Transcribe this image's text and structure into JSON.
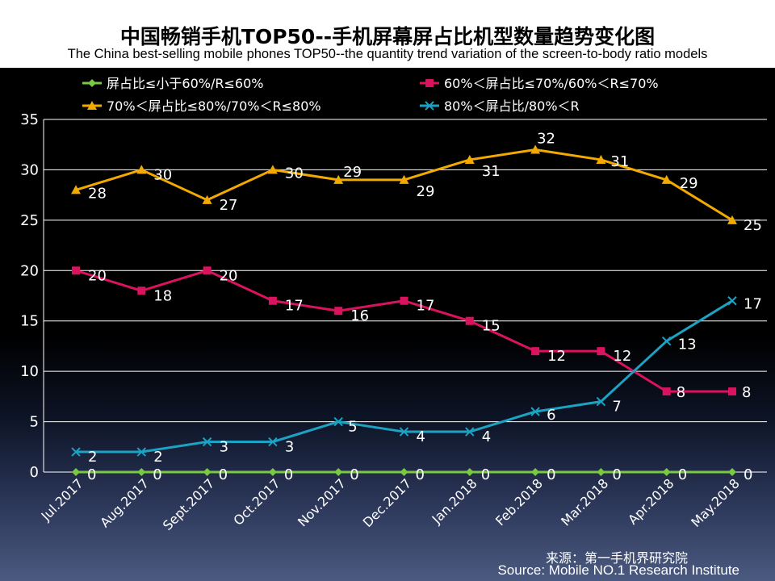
{
  "title": "中国畅销手机TOP50--手机屏幕屏占比机型数量趋势变化图",
  "subtitle": "The China best-selling mobile phones TOP50--the quantity trend variation of the screen-to-body ratio models",
  "source_cn": "来源：第一手机界研究院",
  "source_en": "Source: Mobile NO.1 Research Institute",
  "chart_data": {
    "type": "line",
    "title": "中国畅销手机TOP50--手机屏幕屏占比机型数量趋势变化图",
    "subtitle": "The China best-selling mobile phones TOP50--the quantity trend variation of the screen-to-body ratio models",
    "categories": [
      "Jul.2017",
      "Aug.2017",
      "Sept.2017",
      "Oct.2017",
      "Nov.2017",
      "Dec.2017",
      "Jan.2018",
      "Feb.2018",
      "Mar.2018",
      "Apr.2018",
      "May.2018"
    ],
    "ylim": [
      0,
      35
    ],
    "yticks": [
      0,
      5,
      10,
      15,
      20,
      25,
      30,
      35
    ],
    "ytick_labels": [
      "0",
      "5",
      "10",
      "15",
      "20",
      "25",
      "30",
      "35"
    ],
    "grid": true,
    "legend_position": "top",
    "series": [
      {
        "name": "屏占比≤小于60%/R≤60%",
        "color": "#7ac943",
        "marker": "diamond",
        "values": [
          0,
          0,
          0,
          0,
          0,
          0,
          0,
          0,
          0,
          0,
          0
        ],
        "labels": [
          "0",
          "0",
          "0",
          "0",
          "0",
          "0",
          "0",
          "0",
          "0",
          "0",
          "0"
        ]
      },
      {
        "name": "60%＜屏占比≤70%/60%＜R≤70%",
        "color": "#d9135d",
        "marker": "square",
        "values": [
          20,
          18,
          20,
          17,
          16,
          17,
          15,
          12,
          12,
          8,
          8
        ],
        "labels": [
          "20",
          "18",
          "20",
          "17",
          "16",
          "17",
          "15",
          "12",
          "12",
          "8",
          "8"
        ]
      },
      {
        "name": "70%＜屏占比≤80%/70%＜R≤80%",
        "color": "#f2a900",
        "marker": "triangle",
        "values": [
          28,
          30,
          27,
          30,
          29,
          29,
          31,
          32,
          31,
          29,
          25
        ],
        "labels": [
          "28",
          "30",
          "27",
          "30",
          "29",
          "29",
          "31",
          "32",
          "31",
          "29",
          "25"
        ]
      },
      {
        "name": "80%＜屏占比/80%＜R",
        "color": "#1ca3c4",
        "marker": "x",
        "values": [
          2,
          2,
          3,
          3,
          5,
          4,
          4,
          6,
          7,
          13,
          17
        ],
        "labels": [
          "2",
          "2",
          "3",
          "3",
          "5",
          "4",
          "4",
          "6",
          "7",
          "13",
          "17"
        ]
      }
    ]
  }
}
